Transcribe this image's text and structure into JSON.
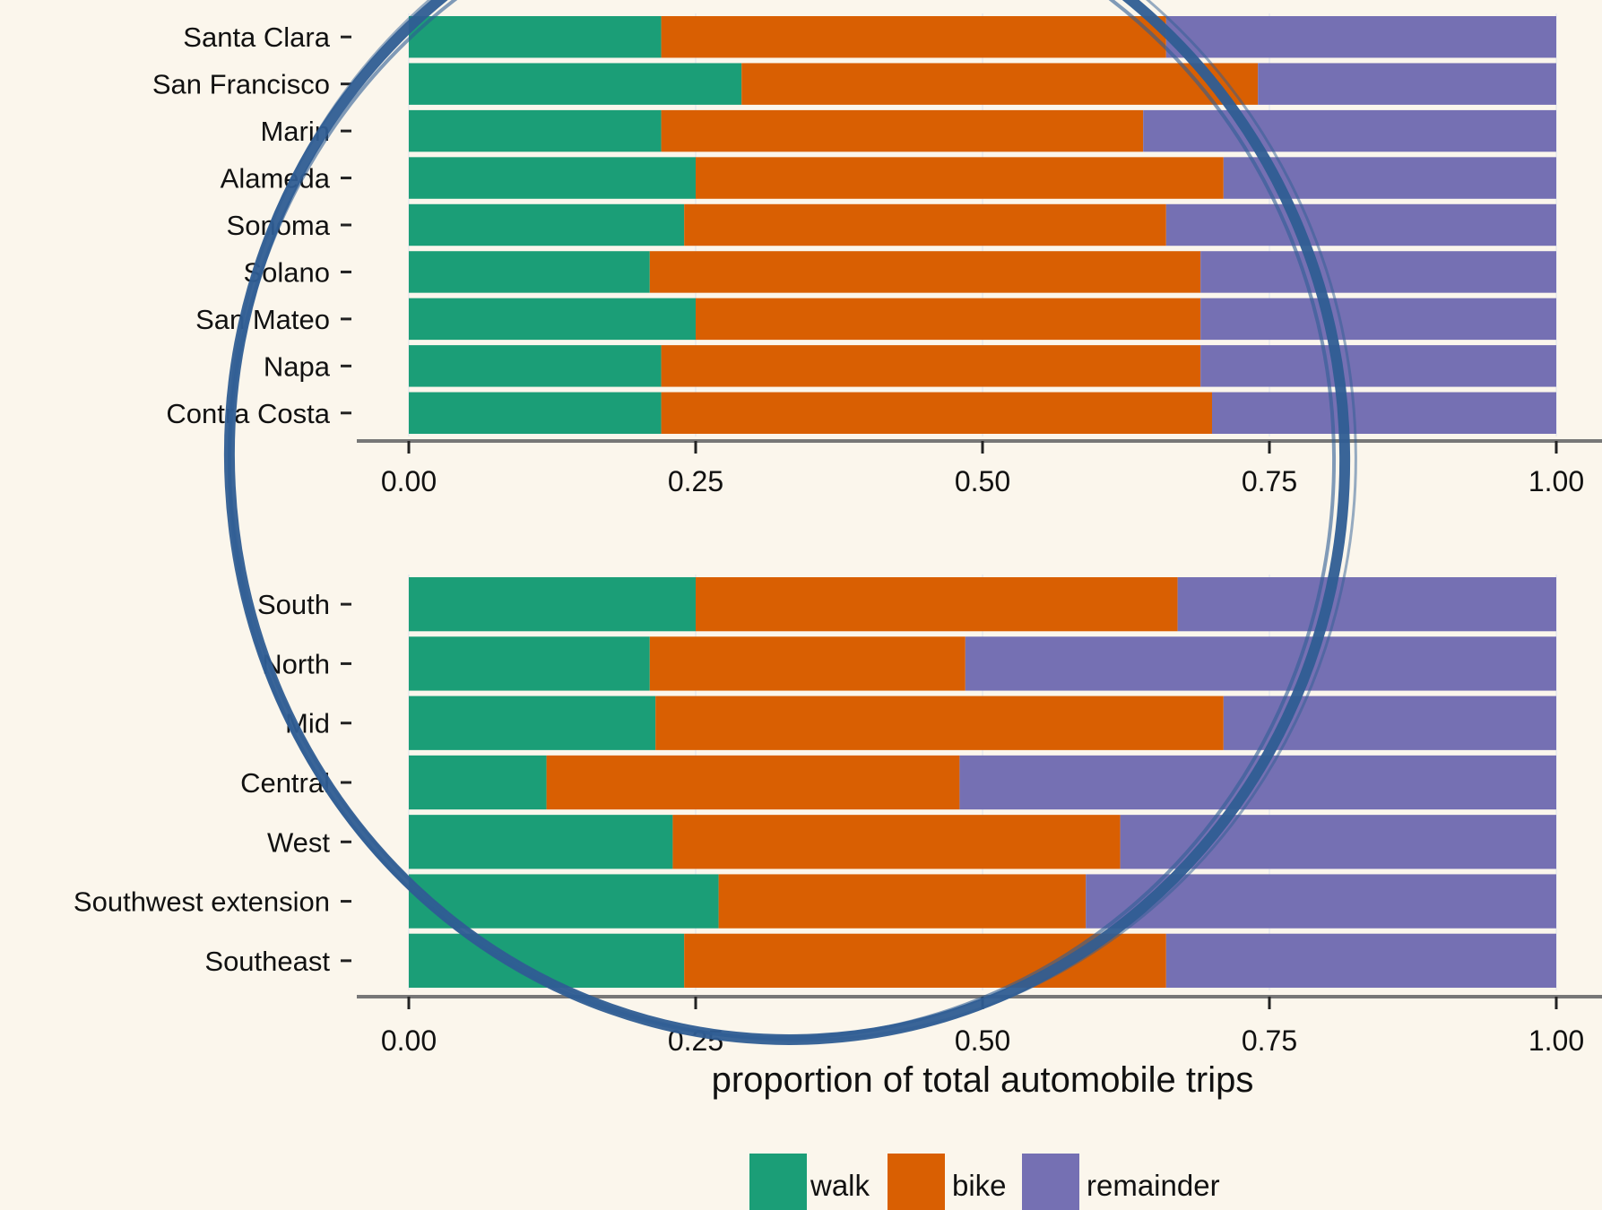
{
  "chart_data": [
    {
      "type": "bar",
      "orientation": "horizontal",
      "stacked": true,
      "categories": [
        "Santa Clara",
        "San Francisco",
        "Marin",
        "Alameda",
        "Sonoma",
        "Solano",
        "San Mateo",
        "Napa",
        "Contra Costa"
      ],
      "series": [
        {
          "name": "walk",
          "color": "#1b9e77",
          "values": [
            0.22,
            0.29,
            0.22,
            0.25,
            0.24,
            0.21,
            0.25,
            0.22,
            0.22
          ]
        },
        {
          "name": "bike",
          "color": "#d95f02",
          "values": [
            0.44,
            0.45,
            0.42,
            0.46,
            0.42,
            0.48,
            0.44,
            0.47,
            0.48
          ]
        },
        {
          "name": "remainder",
          "color": "#7570b3",
          "values": [
            0.34,
            0.26,
            0.36,
            0.29,
            0.34,
            0.31,
            0.31,
            0.31,
            0.3
          ]
        }
      ],
      "xlim": [
        0,
        1
      ],
      "xticks": [
        "0.00",
        "0.25",
        "0.50",
        "0.75",
        "1.00"
      ]
    },
    {
      "type": "bar",
      "orientation": "horizontal",
      "stacked": true,
      "categories": [
        "South",
        "North",
        "Mid",
        "Central",
        "West",
        "Southwest extension",
        "Southeast"
      ],
      "series": [
        {
          "name": "walk",
          "color": "#1b9e77",
          "values": [
            0.25,
            0.21,
            0.215,
            0.12,
            0.23,
            0.27,
            0.24
          ]
        },
        {
          "name": "bike",
          "color": "#d95f02",
          "values": [
            0.42,
            0.275,
            0.495,
            0.36,
            0.39,
            0.32,
            0.42
          ]
        },
        {
          "name": "remainder",
          "color": "#7570b3",
          "values": [
            0.33,
            0.515,
            0.29,
            0.52,
            0.38,
            0.41,
            0.34
          ]
        }
      ],
      "xlim": [
        0,
        1
      ],
      "xticks": [
        "0.00",
        "0.25",
        "0.50",
        "0.75",
        "1.00"
      ],
      "xlabel": "proportion of total automobile trips"
    }
  ],
  "legend": {
    "position": "bottom",
    "items": [
      {
        "label": "walk",
        "color": "#1b9e77"
      },
      {
        "label": "bike",
        "color": "#d95f02"
      },
      {
        "label": "remainder",
        "color": "#7570b3"
      }
    ]
  },
  "style": {
    "background": "#fbf6ec",
    "axis_color": "#777777",
    "overlay_circle_color": "#2f5d94"
  }
}
